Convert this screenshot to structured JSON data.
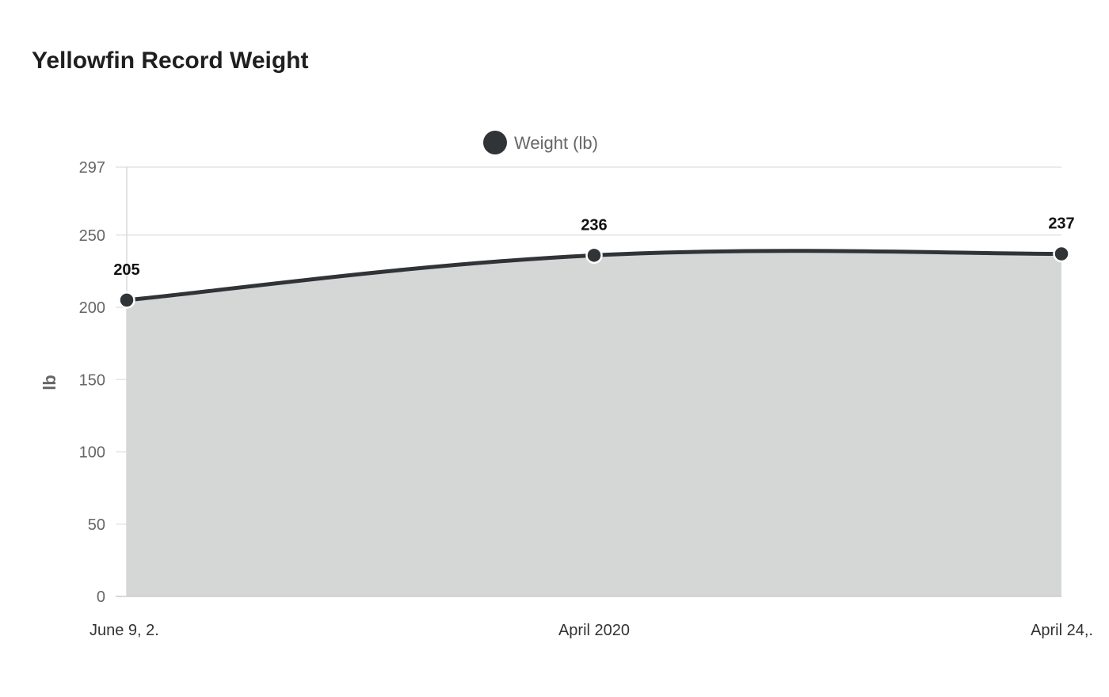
{
  "chart_data": {
    "type": "area",
    "title": "Yellowfin Record Weight",
    "xlabel": "",
    "ylabel": "lb",
    "categories": [
      "June 9, 2.",
      "April 2020",
      "April 24,."
    ],
    "series": [
      {
        "name": "Weight (lb)",
        "values": [
          205,
          236,
          237
        ],
        "color": "#303436"
      }
    ],
    "data_labels": [
      "205",
      "236",
      "237"
    ],
    "yticks": [
      0,
      50,
      100,
      150,
      200,
      250,
      297
    ],
    "ylim": [
      0,
      297
    ],
    "grid": true,
    "legend": "top-center",
    "fill_color": "#d5d7d6",
    "line_color": "#303436"
  }
}
